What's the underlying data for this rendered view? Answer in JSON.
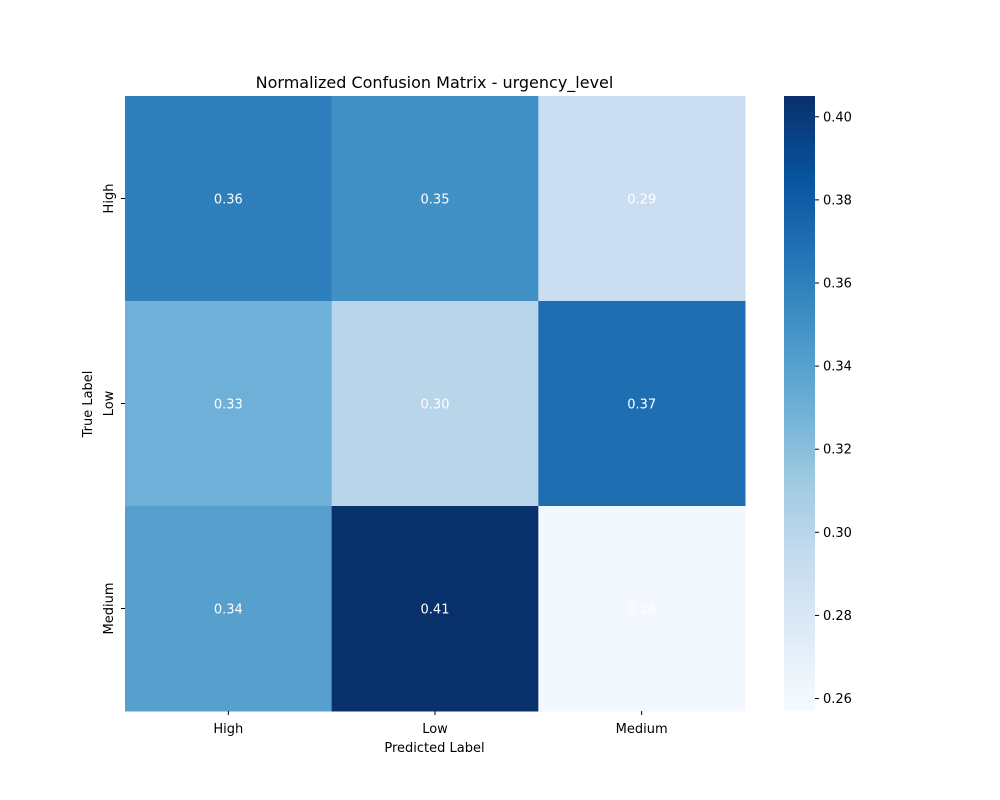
{
  "chart_data": {
    "type": "heatmap",
    "title": "Normalized Confusion Matrix - urgency_level",
    "xlabel": "Predicted Label",
    "ylabel": "True Label",
    "x_categories": [
      "High",
      "Low",
      "Medium"
    ],
    "y_categories": [
      "High",
      "Low",
      "Medium"
    ],
    "values": [
      [
        0.36,
        0.35,
        0.29
      ],
      [
        0.33,
        0.3,
        0.37
      ],
      [
        0.34,
        0.41,
        0.26
      ]
    ],
    "cell_labels": [
      [
        "0.36",
        "0.35",
        "0.29"
      ],
      [
        "0.33",
        "0.30",
        "0.37"
      ],
      [
        "0.34",
        "0.41",
        "0.26"
      ]
    ],
    "colormap": "Blues",
    "color_range": [
      0.257,
      0.405
    ],
    "colorbar_ticks": [
      0.26,
      0.28,
      0.3,
      0.32,
      0.34,
      0.36,
      0.38,
      0.4
    ],
    "colorbar_tick_labels": [
      "0.26",
      "0.28",
      "0.30",
      "0.32",
      "0.34",
      "0.36",
      "0.38",
      "0.40"
    ],
    "colorbar": true,
    "grid": false
  }
}
